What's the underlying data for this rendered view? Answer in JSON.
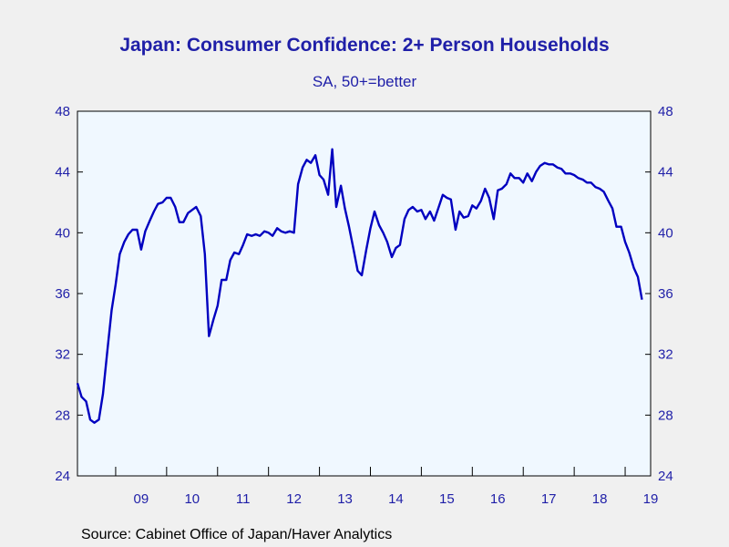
{
  "chart_data": {
    "type": "line",
    "title": "Japan: Consumer Confidence: 2+ Person Households",
    "subtitle": "SA, 50+=better",
    "source": "Source:  Cabinet Office of Japan/Haver Analytics",
    "ylim": [
      24,
      48
    ],
    "yticks": [
      24,
      28,
      32,
      36,
      40,
      44,
      48
    ],
    "y_axis_both_sides": true,
    "xlim": [
      2008.25,
      2019.5
    ],
    "xtick_labels": [
      "09",
      "10",
      "11",
      "12",
      "13",
      "14",
      "15",
      "16",
      "17",
      "18",
      "19"
    ],
    "xtick_years": [
      2009,
      2010,
      2011,
      2012,
      2013,
      2014,
      2015,
      2016,
      2017,
      2018,
      2019
    ],
    "grid": false,
    "line_color": "#0000c0",
    "series": [
      {
        "points": [
          [
            2008.25,
            30.1
          ],
          [
            2008.33,
            29.2
          ],
          [
            2008.42,
            28.9
          ],
          [
            2008.5,
            27.7
          ],
          [
            2008.58,
            27.5
          ],
          [
            2008.67,
            27.7
          ],
          [
            2008.75,
            29.4
          ],
          [
            2008.83,
            32.0
          ],
          [
            2008.92,
            34.9
          ],
          [
            2009.0,
            36.6
          ],
          [
            2009.08,
            38.6
          ],
          [
            2009.17,
            39.4
          ],
          [
            2009.25,
            39.9
          ],
          [
            2009.33,
            40.2
          ],
          [
            2009.42,
            40.2
          ],
          [
            2009.5,
            38.9
          ],
          [
            2009.58,
            40.1
          ],
          [
            2009.67,
            40.8
          ],
          [
            2009.75,
            41.4
          ],
          [
            2009.83,
            41.9
          ],
          [
            2009.92,
            42.0
          ],
          [
            2010.0,
            42.3
          ],
          [
            2010.08,
            42.3
          ],
          [
            2010.17,
            41.7
          ],
          [
            2010.25,
            40.7
          ],
          [
            2010.33,
            40.7
          ],
          [
            2010.42,
            41.3
          ],
          [
            2010.5,
            41.5
          ],
          [
            2010.58,
            41.7
          ],
          [
            2010.67,
            41.1
          ],
          [
            2010.75,
            38.6
          ],
          [
            2010.83,
            33.2
          ],
          [
            2010.92,
            34.3
          ],
          [
            2011.0,
            35.2
          ],
          [
            2011.08,
            36.9
          ],
          [
            2011.17,
            36.9
          ],
          [
            2011.25,
            38.2
          ],
          [
            2011.33,
            38.7
          ],
          [
            2011.42,
            38.6
          ],
          [
            2011.5,
            39.2
          ],
          [
            2011.58,
            39.9
          ],
          [
            2011.67,
            39.8
          ],
          [
            2011.75,
            39.9
          ],
          [
            2011.83,
            39.8
          ],
          [
            2011.92,
            40.1
          ],
          [
            2012.0,
            40.0
          ],
          [
            2012.08,
            39.8
          ],
          [
            2012.17,
            40.3
          ],
          [
            2012.25,
            40.1
          ],
          [
            2012.33,
            40.0
          ],
          [
            2012.42,
            40.1
          ],
          [
            2012.5,
            40.0
          ],
          [
            2012.58,
            43.2
          ],
          [
            2012.67,
            44.3
          ],
          [
            2012.75,
            44.8
          ],
          [
            2012.83,
            44.6
          ],
          [
            2012.92,
            45.1
          ],
          [
            2013.0,
            43.8
          ],
          [
            2013.08,
            43.5
          ],
          [
            2013.17,
            42.5
          ],
          [
            2013.25,
            45.5
          ],
          [
            2013.33,
            41.7
          ],
          [
            2013.42,
            43.1
          ],
          [
            2013.5,
            41.6
          ],
          [
            2013.58,
            40.4
          ],
          [
            2013.67,
            38.9
          ],
          [
            2013.75,
            37.5
          ],
          [
            2013.83,
            37.2
          ],
          [
            2013.92,
            38.9
          ],
          [
            2014.0,
            40.3
          ],
          [
            2014.08,
            41.4
          ],
          [
            2014.17,
            40.5
          ],
          [
            2014.25,
            40.0
          ],
          [
            2014.33,
            39.4
          ],
          [
            2014.42,
            38.4
          ],
          [
            2014.5,
            39.0
          ],
          [
            2014.58,
            39.2
          ],
          [
            2014.67,
            40.9
          ],
          [
            2014.75,
            41.5
          ],
          [
            2014.83,
            41.7
          ],
          [
            2014.92,
            41.4
          ],
          [
            2015.0,
            41.5
          ],
          [
            2015.08,
            40.9
          ],
          [
            2015.17,
            41.4
          ],
          [
            2015.25,
            40.8
          ],
          [
            2015.33,
            41.6
          ],
          [
            2015.42,
            42.5
          ],
          [
            2015.5,
            42.3
          ],
          [
            2015.58,
            42.2
          ],
          [
            2015.67,
            40.2
          ],
          [
            2015.75,
            41.4
          ],
          [
            2015.83,
            41.0
          ],
          [
            2015.92,
            41.1
          ],
          [
            2016.0,
            41.8
          ],
          [
            2016.08,
            41.6
          ],
          [
            2016.17,
            42.1
          ],
          [
            2016.25,
            42.9
          ],
          [
            2016.33,
            42.3
          ],
          [
            2016.42,
            40.9
          ],
          [
            2016.5,
            42.8
          ],
          [
            2016.58,
            42.9
          ],
          [
            2016.67,
            43.2
          ],
          [
            2016.75,
            43.9
          ],
          [
            2016.83,
            43.6
          ],
          [
            2016.92,
            43.6
          ],
          [
            2017.0,
            43.3
          ],
          [
            2017.08,
            43.9
          ],
          [
            2017.17,
            43.4
          ],
          [
            2017.25,
            44.0
          ],
          [
            2017.33,
            44.4
          ],
          [
            2017.42,
            44.6
          ],
          [
            2017.5,
            44.5
          ],
          [
            2017.58,
            44.5
          ],
          [
            2017.67,
            44.3
          ],
          [
            2017.75,
            44.2
          ],
          [
            2017.83,
            43.9
          ],
          [
            2017.92,
            43.9
          ],
          [
            2018.0,
            43.8
          ],
          [
            2018.08,
            43.6
          ],
          [
            2018.17,
            43.5
          ],
          [
            2018.25,
            43.3
          ],
          [
            2018.33,
            43.3
          ],
          [
            2018.42,
            43.0
          ],
          [
            2018.5,
            42.9
          ],
          [
            2018.58,
            42.7
          ],
          [
            2018.67,
            42.1
          ],
          [
            2018.75,
            41.6
          ],
          [
            2018.83,
            40.4
          ],
          [
            2018.92,
            40.4
          ],
          [
            2019.0,
            39.4
          ],
          [
            2019.08,
            38.7
          ],
          [
            2019.17,
            37.7
          ],
          [
            2019.25,
            37.1
          ],
          [
            2019.33,
            35.6
          ]
        ]
      }
    ]
  }
}
